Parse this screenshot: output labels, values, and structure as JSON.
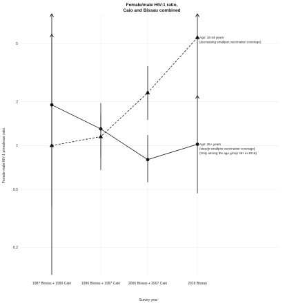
{
  "chart_data": {
    "type": "line",
    "title_lines": [
      "Female/male HIV-1 ratio,",
      "Caio and Bissau combined"
    ],
    "xlabel": "Survey year",
    "ylabel": "Female-male HIV-1 prevalence ratio",
    "categories": [
      "1987 Bissau + 1990 Caió",
      "1996 Bissau + 1997 Caió",
      "2006 Bissau + 2007 Caió",
      "2016 Bissau"
    ],
    "y_scale": "log",
    "ylim": [
      0.13,
      8
    ],
    "yticks": [
      0.2,
      0.5,
      1,
      2,
      5
    ],
    "ytick_labels": [
      "0.2",
      "0.5",
      "1",
      "2",
      "5"
    ],
    "grid": true,
    "series": [
      {
        "key": "young",
        "marker": "triangle",
        "line_style": "dashed",
        "values": [
          1.0,
          1.15,
          2.3,
          5.5
        ],
        "lower": [
          0.13,
          0.82,
          1.5,
          2.1
        ],
        "upper": [
          5.8,
          1.65,
          3.5,
          8
        ],
        "upper_arrow": [
          true,
          false,
          false,
          true
        ]
      },
      {
        "key": "old",
        "marker": "circle",
        "line_style": "solid",
        "values": [
          1.9,
          1.3,
          0.8,
          1.02
        ],
        "lower": [
          0.38,
          0.68,
          0.56,
          0.47
        ],
        "upper": [
          8,
          1.95,
          1.18,
          2.2
        ],
        "upper_arrow": [
          true,
          false,
          false,
          true
        ]
      }
    ],
    "annotations": [
      {
        "lines": [
          "Age: 15-34 years",
          "(decreasing smallpox vaccination coverage)"
        ]
      },
      {
        "lines": [
          "Age: 35+ years",
          "(steady smallpox vaccination coverage)",
          "(Only among the age group 45+ in 2016)"
        ]
      }
    ]
  }
}
